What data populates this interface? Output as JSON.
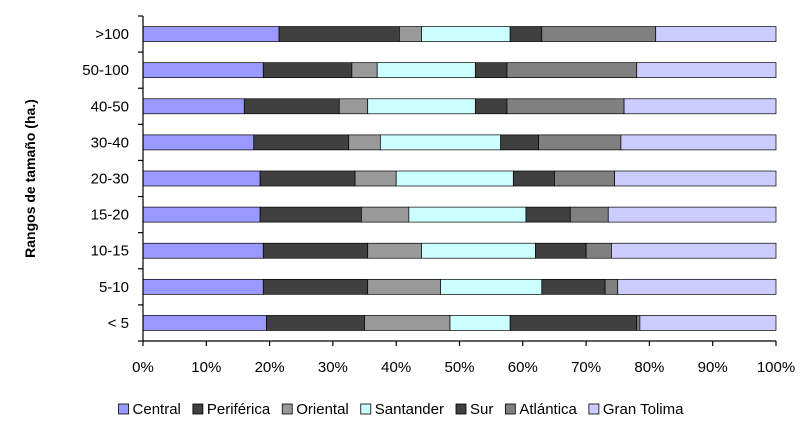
{
  "chart_data": {
    "type": "bar",
    "orientation": "horizontal",
    "stacked": "percent",
    "ylabel": "Rangos de tamaño (ha.)",
    "xlabel": "",
    "xlim": [
      0,
      100
    ],
    "x_ticks": [
      "0%",
      "10%",
      "20%",
      "30%",
      "40%",
      "50%",
      "60%",
      "70%",
      "80%",
      "90%",
      "100%"
    ],
    "categories": [
      ">100",
      "50-100",
      "40-50",
      "30-40",
      "20-30",
      "15-20",
      "10-15",
      "5-10",
      "< 5"
    ],
    "legend_position": "bottom",
    "series": [
      {
        "name": "Central",
        "color": "#9999ff",
        "values": [
          21.5,
          19.0,
          16.0,
          17.5,
          18.5,
          18.5,
          19.0,
          19.0,
          19.5
        ]
      },
      {
        "name": "Periférica",
        "color": "#404040",
        "values": [
          19.0,
          14.0,
          15.0,
          15.0,
          15.0,
          16.0,
          16.5,
          16.5,
          15.5
        ]
      },
      {
        "name": "Oriental",
        "color": "#999999",
        "values": [
          3.5,
          4.0,
          4.5,
          5.0,
          6.5,
          7.5,
          8.5,
          11.5,
          13.5
        ]
      },
      {
        "name": "Santander",
        "color": "#ccffff",
        "values": [
          14.0,
          15.5,
          17.0,
          19.0,
          18.5,
          18.5,
          18.0,
          16.0,
          9.5
        ]
      },
      {
        "name": "Sur",
        "color": "#404040",
        "values": [
          5.0,
          5.0,
          5.0,
          6.0,
          6.5,
          7.0,
          8.0,
          10.0,
          20.0
        ]
      },
      {
        "name": "Atlántica",
        "color": "#808080",
        "values": [
          18.0,
          20.5,
          18.5,
          13.0,
          9.5,
          6.0,
          4.0,
          2.0,
          0.5
        ]
      },
      {
        "name": "Gran Tolima",
        "color": "#ccccff",
        "values": [
          19.0,
          22.0,
          24.0,
          24.5,
          25.5,
          26.5,
          26.0,
          25.0,
          21.5
        ]
      }
    ]
  }
}
